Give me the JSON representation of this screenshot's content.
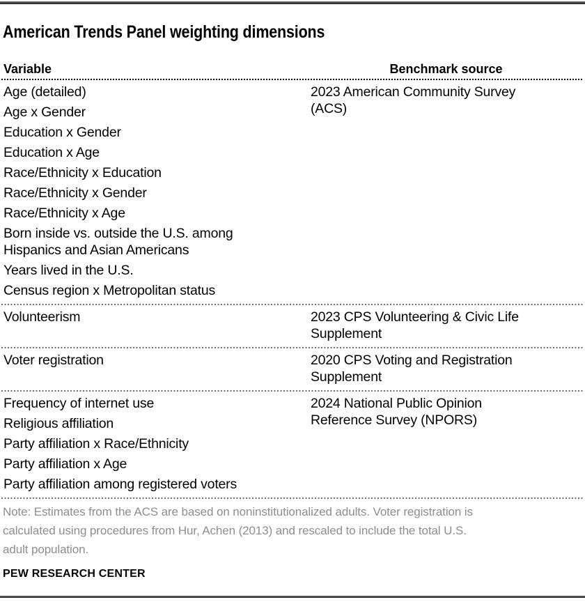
{
  "header": {
    "title": "American Trends Panel weighting dimensions"
  },
  "table": {
    "column_headers": {
      "variable": "Variable",
      "benchmark_source": "Benchmark source"
    },
    "sections": [
      {
        "variables": [
          "Age (detailed)",
          "Age x Gender",
          "Education x Gender",
          "Education x Age",
          "Race/Ethnicity x Education",
          "Race/Ethnicity x Gender",
          "Race/Ethnicity x Age",
          "Born inside vs. outside the U.S. among\nHispanics and Asian Americans",
          "Years lived in the U.S.",
          "Census region x Metropolitan status"
        ],
        "source": "2023 American Community Survey\n(ACS)"
      },
      {
        "variables": [
          "Volunteerism"
        ],
        "source": "2023 CPS Volunteering & Civic Life\nSupplement"
      },
      {
        "variables": [
          "Voter registration"
        ],
        "source": "2020 CPS Voting and Registration\nSupplement"
      },
      {
        "variables": [
          "Frequency of internet use",
          "Religious affiliation",
          "Party affiliation x Race/Ethnicity",
          "Party affiliation x Age",
          "Party affiliation among registered voters"
        ],
        "source": "2024 National Public Opinion\nReference Survey (NPORS)"
      }
    ]
  },
  "note": {
    "text": "Note: Estimates from the ACS are based on noninstitutionalized adults. Voter registration is\ncalculated using procedures from Hur, Achen (2013) and rescaled to include the total U.S.\nadult population."
  },
  "footer": {
    "brand": "PEW RESEARCH CENTER"
  },
  "colors": {
    "text": "#000000",
    "note_text": "#8e8e8e",
    "separator": "#6e6e6e",
    "bar": "#2f2f2f"
  },
  "chart_data": {
    "type": "table",
    "title": "American Trends Panel weighting dimensions",
    "columns": [
      "Variable",
      "Benchmark source"
    ],
    "rows": [
      [
        "Age (detailed); Age x Gender; Education x Gender; Education x Age; Race/Ethnicity x Education; Race/Ethnicity x Gender; Race/Ethnicity x Age; Born inside vs. outside the U.S. among Hispanics and Asian Americans; Years lived in the U.S.; Census region x Metropolitan status",
        "2023 American Community Survey (ACS)"
      ],
      [
        "Volunteerism",
        "2023 CPS Volunteering & Civic Life Supplement"
      ],
      [
        "Voter registration",
        "2020 CPS Voting and Registration Supplement"
      ],
      [
        "Frequency of internet use; Religious affiliation; Party affiliation x Race/Ethnicity; Party affiliation x Age; Party affiliation among registered voters",
        "2024 National Public Opinion Reference Survey (NPORS)"
      ]
    ],
    "note": "Note: Estimates from the ACS are based on noninstitutionalized adults. Voter registration is calculated using procedures from Hur, Achen (2013) and rescaled to include the total U.S. adult population.",
    "source_org": "PEW RESEARCH CENTER"
  }
}
